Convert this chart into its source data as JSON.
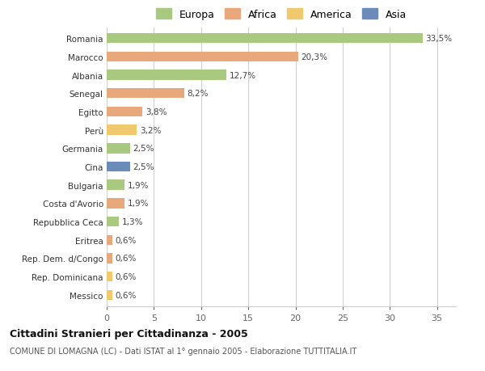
{
  "countries": [
    "Romania",
    "Marocco",
    "Albania",
    "Senegal",
    "Egitto",
    "Perù",
    "Germania",
    "Cina",
    "Bulgaria",
    "Costa d'Avorio",
    "Repubblica Ceca",
    "Eritrea",
    "Rep. Dem. d/Congo",
    "Rep. Dominicana",
    "Messico"
  ],
  "values": [
    33.5,
    20.3,
    12.7,
    8.2,
    3.8,
    3.2,
    2.5,
    2.5,
    1.9,
    1.9,
    1.3,
    0.6,
    0.6,
    0.6,
    0.6
  ],
  "labels": [
    "33,5%",
    "20,3%",
    "12,7%",
    "8,2%",
    "3,8%",
    "3,2%",
    "2,5%",
    "2,5%",
    "1,9%",
    "1,9%",
    "1,3%",
    "0,6%",
    "0,6%",
    "0,6%",
    "0,6%"
  ],
  "continents": [
    "Europa",
    "Africa",
    "Europa",
    "Africa",
    "Africa",
    "America",
    "Europa",
    "Asia",
    "Europa",
    "Africa",
    "Europa",
    "Africa",
    "Africa",
    "America",
    "America"
  ],
  "colors": {
    "Europa": "#a8c97f",
    "Africa": "#e8a87c",
    "America": "#f0c96e",
    "Asia": "#6b8cba"
  },
  "title": "Cittadini Stranieri per Cittadinanza - 2005",
  "subtitle": "COMUNE DI LOMAGNA (LC) - Dati ISTAT al 1° gennaio 2005 - Elaborazione TUTTITALIA.IT",
  "xlim": [
    0,
    37
  ],
  "xticks": [
    0,
    5,
    10,
    15,
    20,
    25,
    30,
    35
  ],
  "background_color": "#ffffff",
  "grid_color": "#d0d0d0",
  "legend_order": [
    "Europa",
    "Africa",
    "America",
    "Asia"
  ]
}
